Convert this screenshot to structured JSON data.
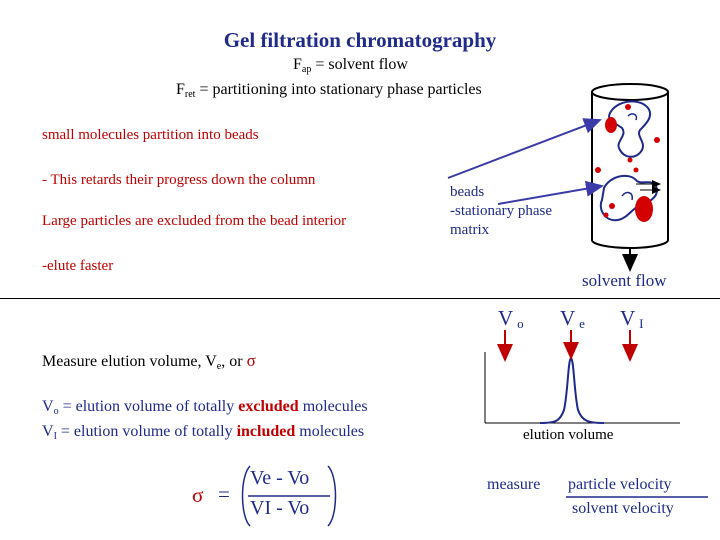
{
  "title": "Gel filtration chromatography",
  "eq1": {
    "f": "F",
    "sub": "ap",
    "rest": " = solvent flow"
  },
  "eq2": {
    "f": "F",
    "sub": "ret",
    "rest": " = partitioning into stationary phase particles"
  },
  "bullets": [
    "small molecules partition into beads",
    "- This retards their progress down the column",
    "Large particles are excluded from the bead interior",
    "-elute faster"
  ],
  "beads_label": [
    "beads",
    "-stationary phase",
    "matrix"
  ],
  "solvent_flow": "solvent flow",
  "volumes": {
    "vo_v": "V",
    "vo_s": "o",
    "ve_v": "V",
    "ve_s": "e",
    "vi_v": "V",
    "vi_s": "I"
  },
  "measure": {
    "prefix": "Measure elution volume, V",
    "sub": "e",
    "mid": ", or ",
    "sigma": "σ"
  },
  "def_vo": {
    "v": "V",
    "sub": "o",
    "pre": " = elution volume of totally ",
    "key": "excluded",
    "post": " molecules"
  },
  "def_vi": {
    "v": "V",
    "sub": "I",
    "pre": "  = elution volume of totally ",
    "key": "included",
    "post": " molecules"
  },
  "elution_volume": "elution volume",
  "sigma_eq": {
    "sigma": "σ",
    "eq": "=",
    "num": "Ve - Vo",
    "den": "VI - Vo"
  },
  "velocity": {
    "prefix": "measure",
    "num": "particle velocity",
    "den": "solvent velocity"
  },
  "colors": {
    "blue": "#1f2a8a",
    "red": "#c00000",
    "bead": "#d40000",
    "arrow": "#3a3aa8"
  }
}
